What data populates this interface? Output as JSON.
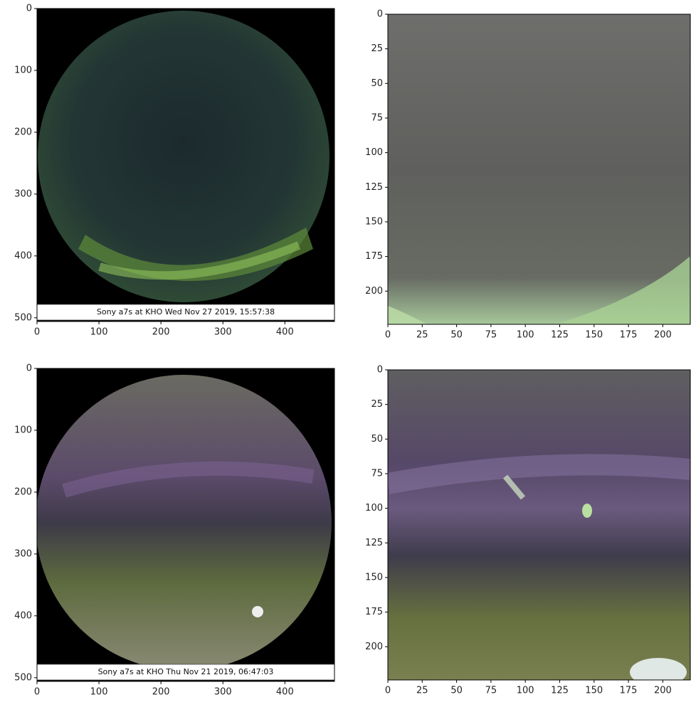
{
  "chart_data": [
    {
      "type": "image",
      "caption": "Sony a7s at KHO Wed Nov 27 2019, 15:57:38",
      "xlim": [
        0,
        480
      ],
      "ylim": [
        506,
        0
      ],
      "xticks": [
        0,
        100,
        200,
        300,
        400
      ],
      "yticks": [
        0,
        100,
        200,
        300,
        400,
        500
      ]
    },
    {
      "type": "image",
      "xlim": [
        0,
        220
      ],
      "ylim": [
        224,
        0
      ],
      "xticks": [
        0,
        25,
        50,
        75,
        100,
        125,
        150,
        175,
        200
      ],
      "yticks": [
        0,
        25,
        50,
        75,
        100,
        125,
        150,
        175,
        200
      ]
    },
    {
      "type": "image",
      "caption": "Sony a7s at KHO Thu Nov 21 2019, 06:47:03",
      "xlim": [
        0,
        480
      ],
      "ylim": [
        506,
        0
      ],
      "xticks": [
        0,
        100,
        200,
        300,
        400
      ],
      "yticks": [
        0,
        100,
        200,
        300,
        400,
        500
      ]
    },
    {
      "type": "image",
      "xlim": [
        0,
        220
      ],
      "ylim": [
        224,
        0
      ],
      "xticks": [
        0,
        25,
        50,
        75,
        100,
        125,
        150,
        175,
        200
      ],
      "yticks": [
        0,
        25,
        50,
        75,
        100,
        125,
        150,
        175,
        200
      ]
    }
  ]
}
